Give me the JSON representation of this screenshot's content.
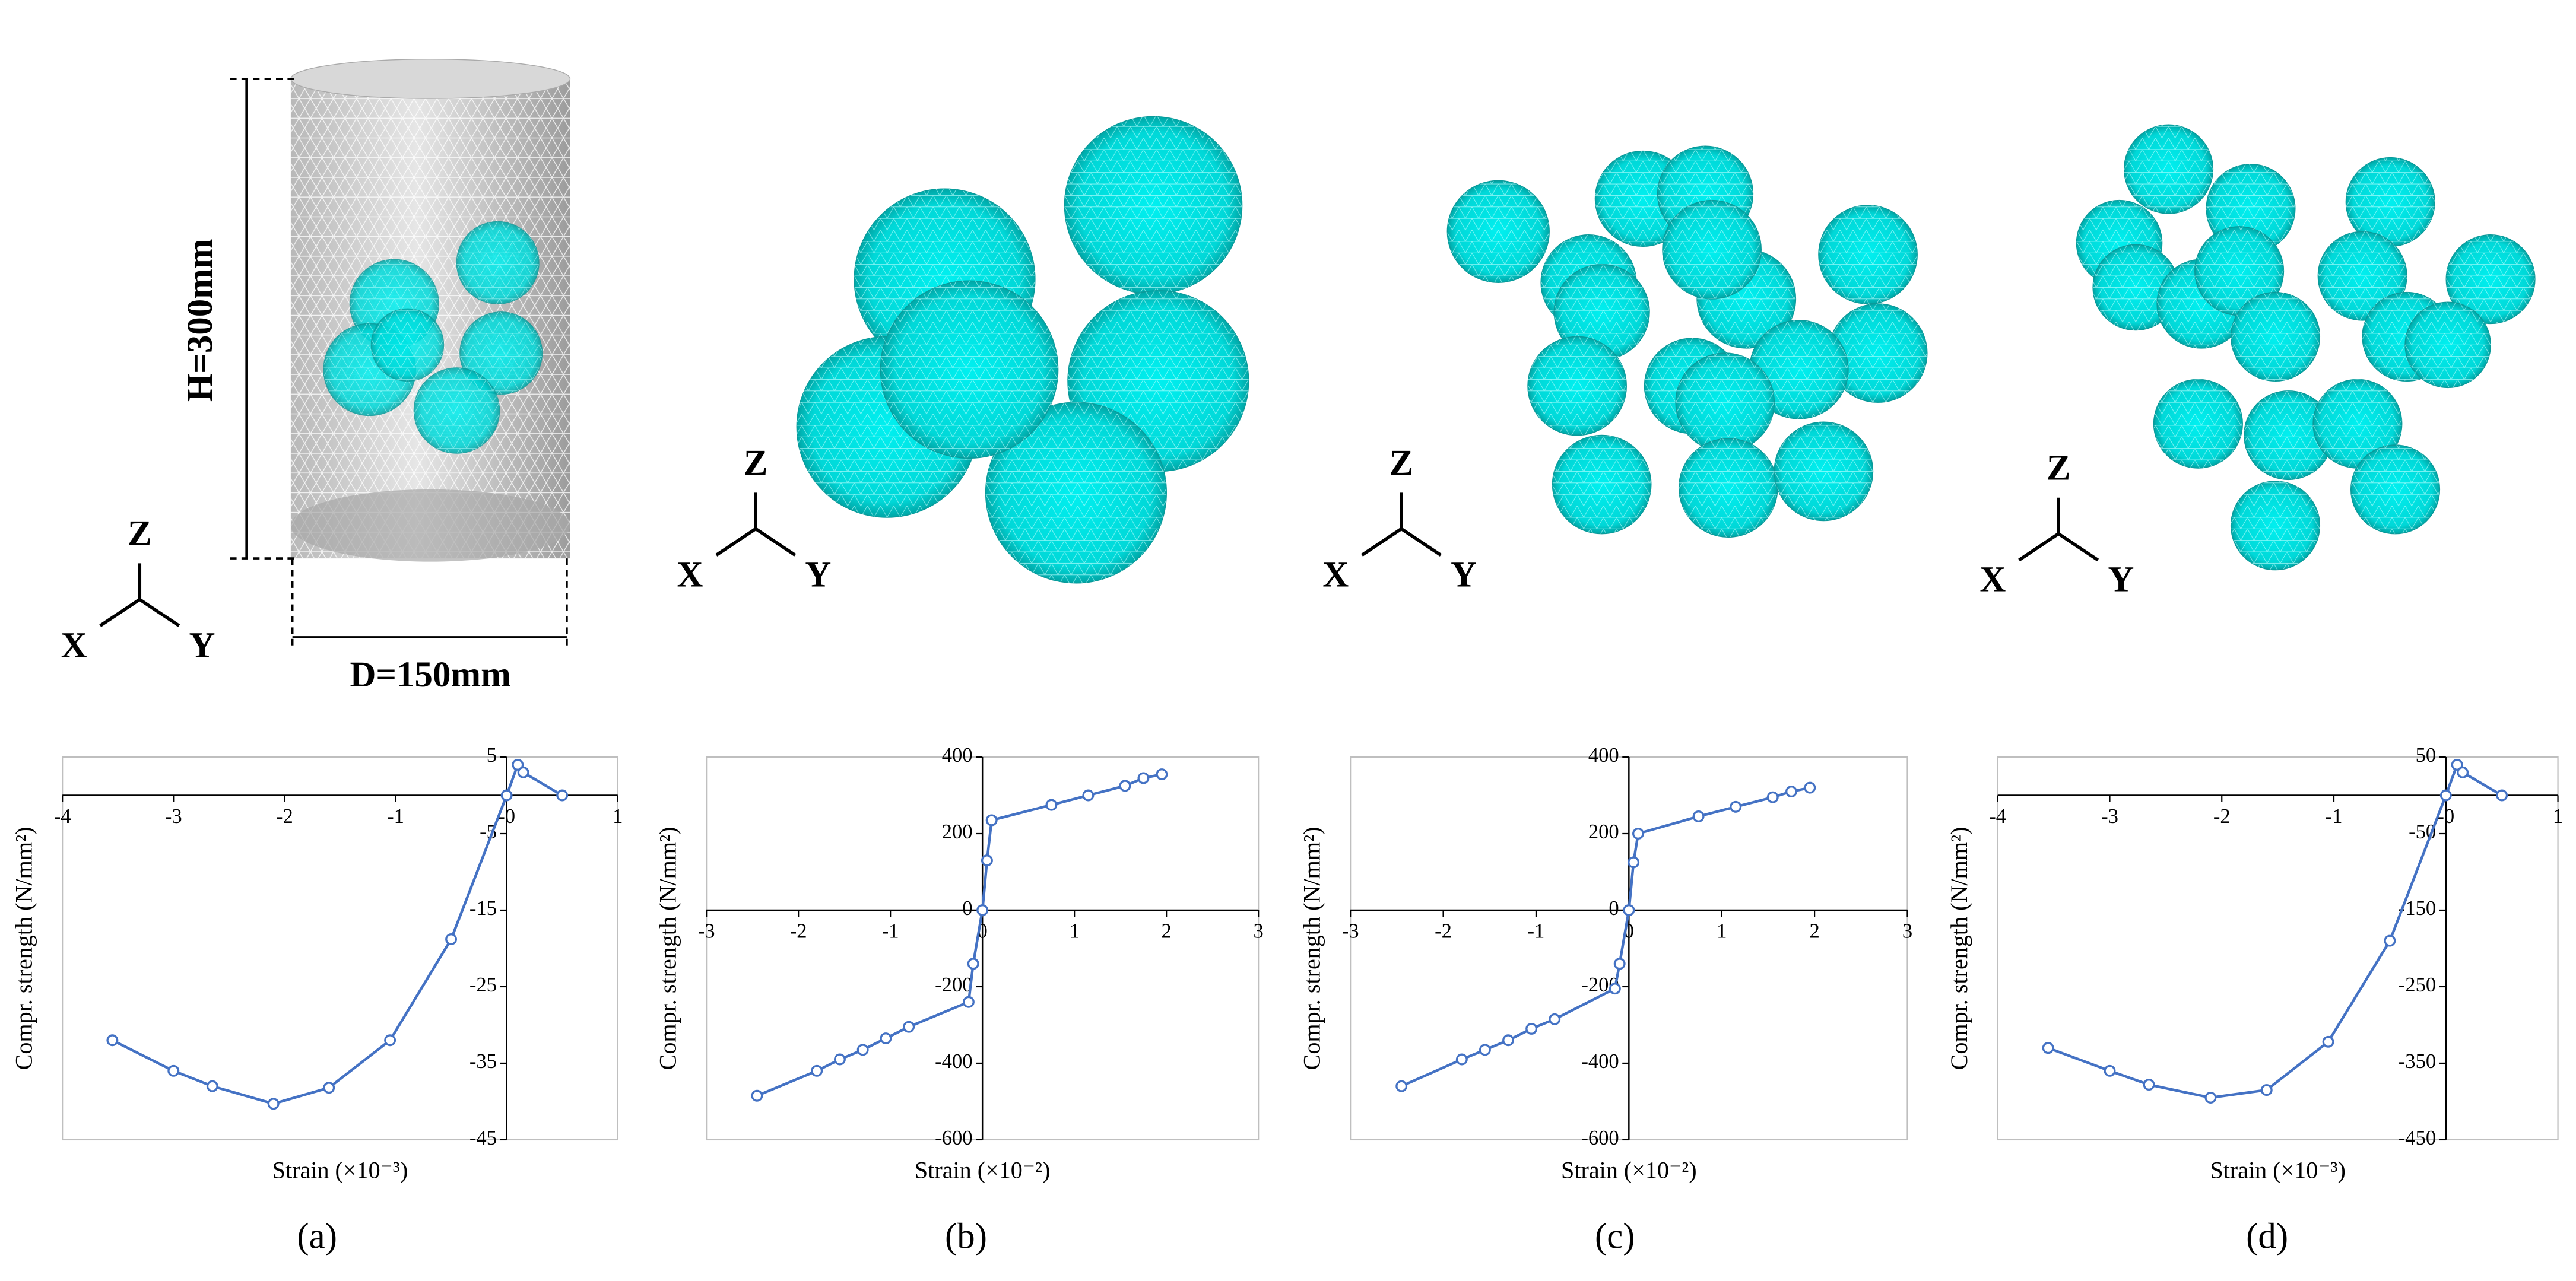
{
  "illustration": {
    "height_label": "H=300mm",
    "diameter_label": "D=150mm",
    "axis_x": "X",
    "axis_y": "Y",
    "axis_z": "Z"
  },
  "panel_labels": [
    "(a)",
    "(b)",
    "(c)",
    "(d)"
  ],
  "chart_data": [
    {
      "type": "line",
      "x_label": "Strain (×10⁻³)",
      "y_label": "Compr. strength (N/mm²)",
      "x": [
        -3.55,
        -3.0,
        -2.65,
        -2.1,
        -1.6,
        -1.05,
        -0.5,
        0,
        0.1,
        0.15,
        0.5
      ],
      "values": [
        -32,
        -36,
        -38,
        -40.3,
        -38.2,
        -32,
        -18.8,
        0,
        4,
        3,
        0
      ],
      "color": "#4472c4",
      "xlim": [
        -4,
        1
      ],
      "xticks": [
        -4,
        -3,
        -2,
        -1,
        {
          "value": 0,
          "label": "-0"
        },
        1
      ],
      "ylim": [
        -45,
        5
      ],
      "yticks": [
        5,
        -5,
        -15,
        -25,
        -35,
        -45
      ]
    },
    {
      "type": "line",
      "x_label": "Strain (×10⁻²)",
      "y_label": "Compr. strength (N/mm²)",
      "x": [
        -2.45,
        -1.8,
        -1.55,
        -1.3,
        -1.05,
        -0.8,
        -0.15,
        -0.1,
        0,
        0.05,
        0.1,
        0.75,
        1.15,
        1.55,
        1.75,
        1.95
      ],
      "values": [
        -485,
        -420,
        -390,
        -365,
        -335,
        -305,
        -240,
        -140,
        0,
        130,
        235,
        275,
        300,
        325,
        345,
        355
      ],
      "color": "#4472c4",
      "xlim": [
        -3,
        3
      ],
      "xticks": [
        -3,
        -2,
        -1,
        0,
        1,
        2,
        3
      ],
      "ylim": [
        -600,
        400
      ],
      "yticks": [
        400,
        200,
        0,
        -200,
        -400,
        -600
      ]
    },
    {
      "type": "line",
      "x_label": "Strain (×10⁻²)",
      "y_label": "Compr. strength (N/mm²)",
      "x": [
        -2.45,
        -1.8,
        -1.55,
        -1.3,
        -1.05,
        -0.8,
        -0.15,
        -0.1,
        0,
        0.05,
        0.1,
        0.75,
        1.15,
        1.55,
        1.75,
        1.95
      ],
      "values": [
        -460,
        -390,
        -365,
        -340,
        -310,
        -285,
        -205,
        -140,
        0,
        125,
        200,
        245,
        270,
        295,
        310,
        320
      ],
      "color": "#4472c4",
      "xlim": [
        -3,
        3
      ],
      "xticks": [
        -3,
        -2,
        -1,
        0,
        1,
        2,
        3
      ],
      "ylim": [
        -600,
        400
      ],
      "yticks": [
        400,
        200,
        0,
        -200,
        -400,
        -600
      ]
    },
    {
      "type": "line",
      "x_label": "Strain (×10⁻³)",
      "y_label": "Compr. strength (N/mm²)",
      "x": [
        -3.55,
        -3.0,
        -2.65,
        -2.1,
        -1.6,
        -1.05,
        -0.5,
        0,
        0.1,
        0.15,
        0.5
      ],
      "values": [
        -330,
        -360,
        -378,
        -395,
        -385,
        -322,
        -190,
        0,
        40,
        30,
        0
      ],
      "color": "#4472c4",
      "xlim": [
        -4,
        1
      ],
      "xticks": [
        -4,
        -3,
        -2,
        -1,
        {
          "value": 0,
          "label": "-0"
        },
        1
      ],
      "ylim": [
        -450,
        50
      ],
      "yticks": [
        50,
        -50,
        -150,
        -250,
        -350,
        -450
      ]
    }
  ]
}
